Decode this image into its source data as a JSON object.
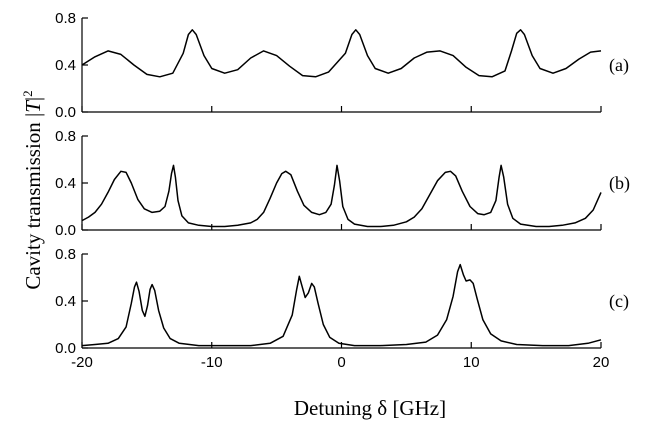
{
  "chart_data": {
    "type": "line",
    "xlabel": "Detuning δ [GHz]",
    "ylabel": "Cavity transmission |T|²",
    "ylabel_parts": {
      "prefix": "Cavity transmission |",
      "T": "T",
      "bar": "|",
      "exp": "2"
    },
    "xlim": [
      -20,
      20
    ],
    "x_ticks": [
      -20,
      -10,
      0,
      10,
      20
    ],
    "x_tick_labels": [
      "-20",
      "-10",
      "0",
      "10",
      "20"
    ],
    "grid": false,
    "panels": [
      {
        "label": "(a)",
        "ylim": [
          0,
          0.8
        ],
        "y_ticks": [
          0,
          0.4,
          0.8
        ],
        "y_tick_labels": [
          "0.0",
          "0.4",
          "0.8"
        ],
        "points": [
          [
            -20,
            0.4
          ],
          [
            -19,
            0.47
          ],
          [
            -18,
            0.52
          ],
          [
            -17,
            0.49
          ],
          [
            -16,
            0.4
          ],
          [
            -15,
            0.32
          ],
          [
            -14,
            0.3
          ],
          [
            -13,
            0.33
          ],
          [
            -12.2,
            0.5
          ],
          [
            -11.8,
            0.66
          ],
          [
            -11.5,
            0.7
          ],
          [
            -11.2,
            0.66
          ],
          [
            -10.6,
            0.48
          ],
          [
            -10,
            0.37
          ],
          [
            -9,
            0.33
          ],
          [
            -8,
            0.36
          ],
          [
            -7,
            0.46
          ],
          [
            -6,
            0.52
          ],
          [
            -5,
            0.48
          ],
          [
            -4,
            0.39
          ],
          [
            -3,
            0.31
          ],
          [
            -2,
            0.3
          ],
          [
            -1,
            0.34
          ],
          [
            0.3,
            0.5
          ],
          [
            0.8,
            0.66
          ],
          [
            1.1,
            0.7
          ],
          [
            1.4,
            0.66
          ],
          [
            2,
            0.48
          ],
          [
            2.6,
            0.37
          ],
          [
            3.6,
            0.33
          ],
          [
            4.6,
            0.37
          ],
          [
            5.6,
            0.46
          ],
          [
            6.6,
            0.51
          ],
          [
            7.6,
            0.52
          ],
          [
            8.6,
            0.48
          ],
          [
            9.6,
            0.38
          ],
          [
            10.6,
            0.31
          ],
          [
            11.6,
            0.3
          ],
          [
            12.6,
            0.35
          ],
          [
            13.1,
            0.52
          ],
          [
            13.5,
            0.67
          ],
          [
            13.8,
            0.7
          ],
          [
            14.1,
            0.66
          ],
          [
            14.7,
            0.48
          ],
          [
            15.3,
            0.37
          ],
          [
            16.3,
            0.33
          ],
          [
            17.3,
            0.37
          ],
          [
            18.3,
            0.45
          ],
          [
            19.2,
            0.51
          ],
          [
            20,
            0.52
          ]
        ]
      },
      {
        "label": "(b)",
        "ylim": [
          0,
          0.8
        ],
        "y_ticks": [
          0,
          0.4,
          0.8
        ],
        "y_tick_labels": [
          "0.0",
          "0.4",
          "0.8"
        ],
        "points": [
          [
            -20,
            0.08
          ],
          [
            -19.5,
            0.11
          ],
          [
            -19,
            0.15
          ],
          [
            -18.5,
            0.22
          ],
          [
            -18,
            0.32
          ],
          [
            -17.5,
            0.43
          ],
          [
            -17,
            0.5
          ],
          [
            -16.6,
            0.49
          ],
          [
            -16.2,
            0.4
          ],
          [
            -15.7,
            0.26
          ],
          [
            -15.2,
            0.18
          ],
          [
            -14.6,
            0.15
          ],
          [
            -14,
            0.16
          ],
          [
            -13.6,
            0.2
          ],
          [
            -13.3,
            0.33
          ],
          [
            -13.1,
            0.48
          ],
          [
            -12.95,
            0.55
          ],
          [
            -12.8,
            0.45
          ],
          [
            -12.6,
            0.25
          ],
          [
            -12.3,
            0.12
          ],
          [
            -11.8,
            0.06
          ],
          [
            -11,
            0.04
          ],
          [
            -10,
            0.03
          ],
          [
            -9,
            0.03
          ],
          [
            -8,
            0.04
          ],
          [
            -7,
            0.06
          ],
          [
            -6.5,
            0.09
          ],
          [
            -6,
            0.15
          ],
          [
            -5.5,
            0.27
          ],
          [
            -5,
            0.4
          ],
          [
            -4.6,
            0.48
          ],
          [
            -4.3,
            0.5
          ],
          [
            -3.9,
            0.47
          ],
          [
            -3.4,
            0.33
          ],
          [
            -2.9,
            0.21
          ],
          [
            -2.3,
            0.15
          ],
          [
            -1.7,
            0.13
          ],
          [
            -1.2,
            0.15
          ],
          [
            -0.8,
            0.22
          ],
          [
            -0.55,
            0.38
          ],
          [
            -0.35,
            0.55
          ],
          [
            -0.15,
            0.42
          ],
          [
            0.1,
            0.2
          ],
          [
            0.5,
            0.09
          ],
          [
            1,
            0.05
          ],
          [
            2,
            0.03
          ],
          [
            3,
            0.03
          ],
          [
            4,
            0.04
          ],
          [
            5,
            0.07
          ],
          [
            5.6,
            0.11
          ],
          [
            6.2,
            0.18
          ],
          [
            6.8,
            0.3
          ],
          [
            7.4,
            0.42
          ],
          [
            8,
            0.49
          ],
          [
            8.4,
            0.5
          ],
          [
            8.8,
            0.46
          ],
          [
            9.3,
            0.33
          ],
          [
            9.9,
            0.2
          ],
          [
            10.5,
            0.14
          ],
          [
            11,
            0.13
          ],
          [
            11.5,
            0.15
          ],
          [
            11.9,
            0.25
          ],
          [
            12.15,
            0.45
          ],
          [
            12.3,
            0.55
          ],
          [
            12.5,
            0.45
          ],
          [
            12.8,
            0.22
          ],
          [
            13.2,
            0.1
          ],
          [
            13.8,
            0.05
          ],
          [
            15,
            0.03
          ],
          [
            16,
            0.03
          ],
          [
            17,
            0.04
          ],
          [
            18,
            0.06
          ],
          [
            18.8,
            0.1
          ],
          [
            19.4,
            0.17
          ],
          [
            20,
            0.32
          ]
        ]
      },
      {
        "label": "(c)",
        "ylim": [
          0,
          0.8
        ],
        "y_ticks": [
          0,
          0.4,
          0.8
        ],
        "y_tick_labels": [
          "0.0",
          "0.4",
          "0.8"
        ],
        "points": [
          [
            -20,
            0.02
          ],
          [
            -19,
            0.03
          ],
          [
            -18,
            0.04
          ],
          [
            -17.2,
            0.08
          ],
          [
            -16.6,
            0.18
          ],
          [
            -16.2,
            0.38
          ],
          [
            -15.95,
            0.52
          ],
          [
            -15.8,
            0.56
          ],
          [
            -15.6,
            0.48
          ],
          [
            -15.35,
            0.32
          ],
          [
            -15.15,
            0.27
          ],
          [
            -14.95,
            0.36
          ],
          [
            -14.75,
            0.5
          ],
          [
            -14.6,
            0.54
          ],
          [
            -14.4,
            0.49
          ],
          [
            -14.1,
            0.32
          ],
          [
            -13.7,
            0.17
          ],
          [
            -13.2,
            0.08
          ],
          [
            -12.5,
            0.04
          ],
          [
            -11,
            0.02
          ],
          [
            -9,
            0.02
          ],
          [
            -7,
            0.02
          ],
          [
            -5.5,
            0.04
          ],
          [
            -4.5,
            0.1
          ],
          [
            -3.8,
            0.28
          ],
          [
            -3.45,
            0.5
          ],
          [
            -3.25,
            0.61
          ],
          [
            -3.05,
            0.53
          ],
          [
            -2.8,
            0.43
          ],
          [
            -2.55,
            0.47
          ],
          [
            -2.3,
            0.55
          ],
          [
            -2.1,
            0.52
          ],
          [
            -1.8,
            0.38
          ],
          [
            -1.4,
            0.2
          ],
          [
            -0.9,
            0.09
          ],
          [
            -0.2,
            0.04
          ],
          [
            1,
            0.02
          ],
          [
            3,
            0.02
          ],
          [
            5,
            0.03
          ],
          [
            6.5,
            0.05
          ],
          [
            7.4,
            0.11
          ],
          [
            8.1,
            0.24
          ],
          [
            8.6,
            0.44
          ],
          [
            8.95,
            0.65
          ],
          [
            9.15,
            0.71
          ],
          [
            9.4,
            0.62
          ],
          [
            9.6,
            0.57
          ],
          [
            9.9,
            0.58
          ],
          [
            10.15,
            0.55
          ],
          [
            10.45,
            0.42
          ],
          [
            10.9,
            0.24
          ],
          [
            11.5,
            0.12
          ],
          [
            12.3,
            0.06
          ],
          [
            13.5,
            0.03
          ],
          [
            15.5,
            0.02
          ],
          [
            17.5,
            0.02
          ],
          [
            19,
            0.04
          ],
          [
            20,
            0.07
          ]
        ]
      }
    ]
  }
}
